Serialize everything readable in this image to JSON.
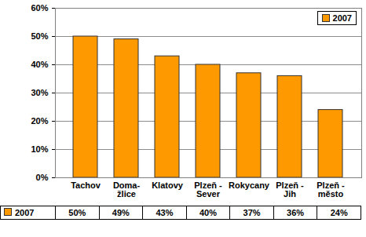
{
  "chart_data": {
    "type": "bar",
    "categories": [
      "Tachov",
      "Doma-\nžlice",
      "Klatovy",
      "Plzeň -\nSever",
      "Rokycany",
      "Plzeň -\nJih",
      "Plzeň -\nměsto"
    ],
    "series": [
      {
        "name": "2007",
        "color": "#ff9900",
        "values": [
          50,
          49,
          43,
          40,
          37,
          36,
          24
        ],
        "value_labels": [
          "50%",
          "49%",
          "43%",
          "40%",
          "37%",
          "36%",
          "24%"
        ]
      }
    ],
    "ylim": [
      0,
      60
    ],
    "yticks": [
      {
        "value": 0,
        "label": "0%"
      },
      {
        "value": 10,
        "label": "10%"
      },
      {
        "value": 20,
        "label": "20%"
      },
      {
        "value": 30,
        "label": "30%"
      },
      {
        "value": 40,
        "label": "40%"
      },
      {
        "value": 50,
        "label": "50%"
      },
      {
        "value": 60,
        "label": "60%"
      }
    ],
    "grid": true,
    "legend": "top-right",
    "data_labels": true
  }
}
